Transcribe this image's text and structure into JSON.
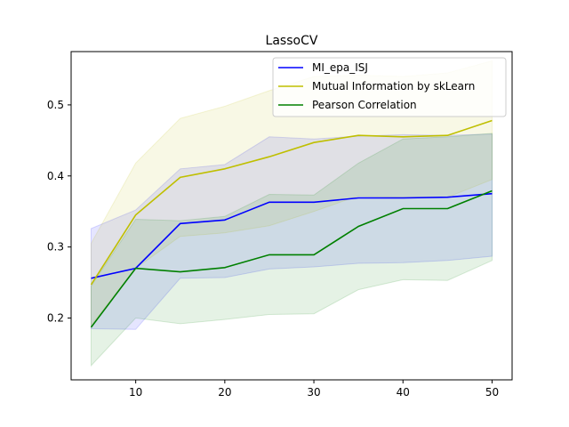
{
  "chart_data": {
    "type": "line",
    "title": "LassoCV",
    "xlabel": "",
    "ylabel": "",
    "xlim": [
      2.75,
      52.25
    ],
    "ylim": [
      0.113,
      0.575
    ],
    "x_ticks": [
      10,
      20,
      30,
      40,
      50
    ],
    "y_ticks": [
      0.2,
      0.3,
      0.4,
      0.5
    ],
    "x_tick_labels": [
      "10",
      "20",
      "30",
      "40",
      "50"
    ],
    "y_tick_labels": [
      "0.2",
      "0.3",
      "0.4",
      "0.5"
    ],
    "grid": false,
    "legend_position": "top-right",
    "x": [
      5,
      10,
      15,
      20,
      25,
      30,
      35,
      40,
      45,
      50
    ],
    "series": [
      {
        "name": "MI_epa_ISJ",
        "color": "#0000ff",
        "values": [
          0.256,
          0.27,
          0.333,
          0.338,
          0.363,
          0.363,
          0.369,
          0.369,
          0.37,
          0.375
        ],
        "band_lower": [
          0.185,
          0.184,
          0.256,
          0.257,
          0.269,
          0.272,
          0.277,
          0.278,
          0.281,
          0.287
        ],
        "band_upper": [
          0.326,
          0.352,
          0.41,
          0.416,
          0.455,
          0.452,
          0.456,
          0.458,
          0.457,
          0.459
        ]
      },
      {
        "name": "Mutual Information by skLearn",
        "color": "#bfbf00",
        "values": [
          0.247,
          0.345,
          0.398,
          0.41,
          0.427,
          0.447,
          0.457,
          0.455,
          0.457,
          0.478
        ],
        "band_lower": [
          0.19,
          0.27,
          0.315,
          0.32,
          0.33,
          0.35,
          0.372,
          0.37,
          0.37,
          0.395
        ],
        "band_upper": [
          0.305,
          0.418,
          0.481,
          0.498,
          0.52,
          0.54,
          0.542,
          0.54,
          0.545,
          0.562
        ]
      },
      {
        "name": "Pearson Correlation",
        "color": "#008000",
        "values": [
          0.187,
          0.27,
          0.265,
          0.271,
          0.289,
          0.289,
          0.329,
          0.354,
          0.354,
          0.379
        ],
        "band_lower": [
          0.133,
          0.2,
          0.192,
          0.198,
          0.205,
          0.206,
          0.24,
          0.254,
          0.253,
          0.281
        ],
        "band_upper": [
          0.245,
          0.339,
          0.337,
          0.343,
          0.374,
          0.373,
          0.418,
          0.452,
          0.455,
          0.46
        ]
      }
    ]
  }
}
